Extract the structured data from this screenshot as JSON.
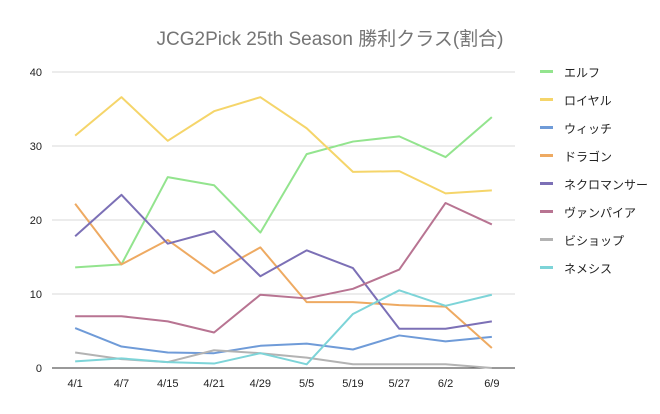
{
  "chart_data": {
    "type": "line",
    "title": "JCG2Pick 25th Season 勝利クラス(割合)",
    "xlabel": "",
    "ylabel": "",
    "ylim": [
      0,
      40
    ],
    "yticks": [
      "0",
      "10",
      "20",
      "30",
      "40"
    ],
    "grid": true,
    "legend": "right",
    "categories": [
      "4/1",
      "4/7",
      "4/15",
      "4/21",
      "4/29",
      "5/5",
      "5/19",
      "5/27",
      "6/2",
      "6/9"
    ],
    "series": [
      {
        "name": "エルフ",
        "color": "#93e48e",
        "values": [
          13.6,
          14.0,
          25.8,
          24.7,
          18.3,
          28.9,
          30.6,
          31.3,
          28.5,
          33.9
        ]
      },
      {
        "name": "ロイヤル",
        "color": "#f5d56a",
        "values": [
          31.4,
          36.6,
          30.7,
          34.7,
          36.6,
          32.4,
          26.5,
          26.6,
          23.6,
          24.0
        ]
      },
      {
        "name": "ウィッチ",
        "color": "#6f9bd8",
        "values": [
          5.4,
          2.9,
          2.1,
          2.0,
          3.0,
          3.3,
          2.5,
          4.4,
          3.6,
          4.2
        ]
      },
      {
        "name": "ドラゴン",
        "color": "#eeaa62",
        "values": [
          22.2,
          14.0,
          17.3,
          12.8,
          16.3,
          8.9,
          8.9,
          8.5,
          8.3,
          2.7
        ]
      },
      {
        "name": "ネクロマンサー",
        "color": "#7c70b6",
        "values": [
          17.8,
          23.4,
          16.8,
          18.5,
          12.4,
          15.9,
          13.5,
          5.3,
          5.3,
          6.3
        ]
      },
      {
        "name": "ヴァンパイア",
        "color": "#b87492",
        "values": [
          7.0,
          7.0,
          6.3,
          4.8,
          9.9,
          9.4,
          10.7,
          13.3,
          22.3,
          19.4
        ]
      },
      {
        "name": "ビショップ",
        "color": "#b3b3b3",
        "values": [
          2.1,
          1.2,
          0.8,
          2.4,
          2.0,
          1.4,
          0.5,
          0.5,
          0.5,
          0.0
        ]
      },
      {
        "name": "ネメシス",
        "color": "#7dd4d8",
        "values": [
          0.9,
          1.3,
          0.8,
          0.6,
          2.0,
          0.5,
          7.3,
          10.5,
          8.4,
          9.9
        ]
      }
    ]
  }
}
